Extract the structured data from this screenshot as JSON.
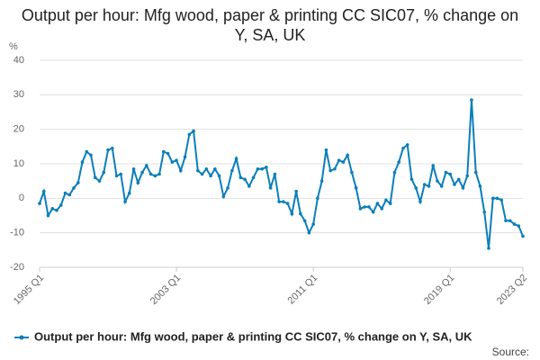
{
  "chart_data": {
    "type": "line",
    "title": "Output per hour: Mfg wood, paper & printing CC SIC07, % change on Y, SA, UK",
    "y_label": "%",
    "source": "Source:",
    "categories": [
      "1995 Q1",
      null,
      null,
      null,
      null,
      null,
      null,
      null,
      null,
      null,
      null,
      null,
      null,
      null,
      null,
      null,
      null,
      null,
      null,
      null,
      null,
      null,
      null,
      null,
      null,
      null,
      null,
      null,
      null,
      null,
      null,
      null,
      "2003 Q1",
      null,
      null,
      null,
      null,
      null,
      null,
      null,
      null,
      null,
      null,
      null,
      null,
      null,
      null,
      null,
      null,
      null,
      null,
      null,
      null,
      null,
      null,
      null,
      null,
      null,
      null,
      null,
      null,
      null,
      null,
      null,
      "2011 Q1",
      null,
      null,
      null,
      null,
      null,
      null,
      null,
      null,
      null,
      null,
      null,
      null,
      null,
      null,
      null,
      null,
      null,
      null,
      null,
      null,
      null,
      null,
      null,
      null,
      null,
      null,
      null,
      null,
      null,
      null,
      null,
      "2019 Q1",
      null,
      null,
      null,
      null,
      null,
      null,
      null,
      null,
      null,
      null,
      null,
      null,
      null,
      null,
      null,
      null,
      "2023 Q2"
    ],
    "series": [
      {
        "name": "Output per hour: Mfg wood, paper & printing CC SIC07, % change on Y, SA, UK",
        "color": "#0b7fba",
        "values": [
          -1.5,
          2,
          -5,
          -3,
          -3.5,
          -2,
          1.5,
          1,
          3,
          4.5,
          10.5,
          13.5,
          12.5,
          6,
          5,
          7.5,
          14,
          14.5,
          6.5,
          7,
          -1,
          1.5,
          8.5,
          4.5,
          7.5,
          9.5,
          7,
          6.5,
          7,
          13.5,
          13,
          10.5,
          11,
          8,
          12,
          18.5,
          19.5,
          8,
          7,
          8.5,
          6.5,
          8.5,
          6.5,
          0.5,
          3,
          8,
          11.5,
          6,
          5.5,
          3.5,
          6,
          8.5,
          8.5,
          9,
          3,
          7,
          -1,
          -1,
          -1.5,
          -4.5,
          2,
          -4.5,
          -6.5,
          -10,
          -7.5,
          0,
          5,
          14,
          8,
          8.5,
          11,
          10.5,
          12.5,
          7.5,
          3,
          -3,
          -2.5,
          -2.5,
          -4,
          -1.5,
          -3,
          -0.5,
          -1.5,
          7.5,
          10.5,
          14.5,
          15.5,
          5.5,
          3,
          -1,
          4,
          3.5,
          9.5,
          5,
          3.5,
          7.5,
          7,
          4,
          5.5,
          3,
          6.5,
          28.5,
          7.5,
          3.5,
          -4,
          -14.5,
          0,
          0,
          -0.5,
          -6.5,
          -6.5,
          -7.5,
          -8,
          -11
        ]
      }
    ],
    "ylim": [
      -20,
      40
    ],
    "yticks": [
      -20,
      -10,
      0,
      10,
      20,
      30,
      40
    ],
    "grid": true
  }
}
